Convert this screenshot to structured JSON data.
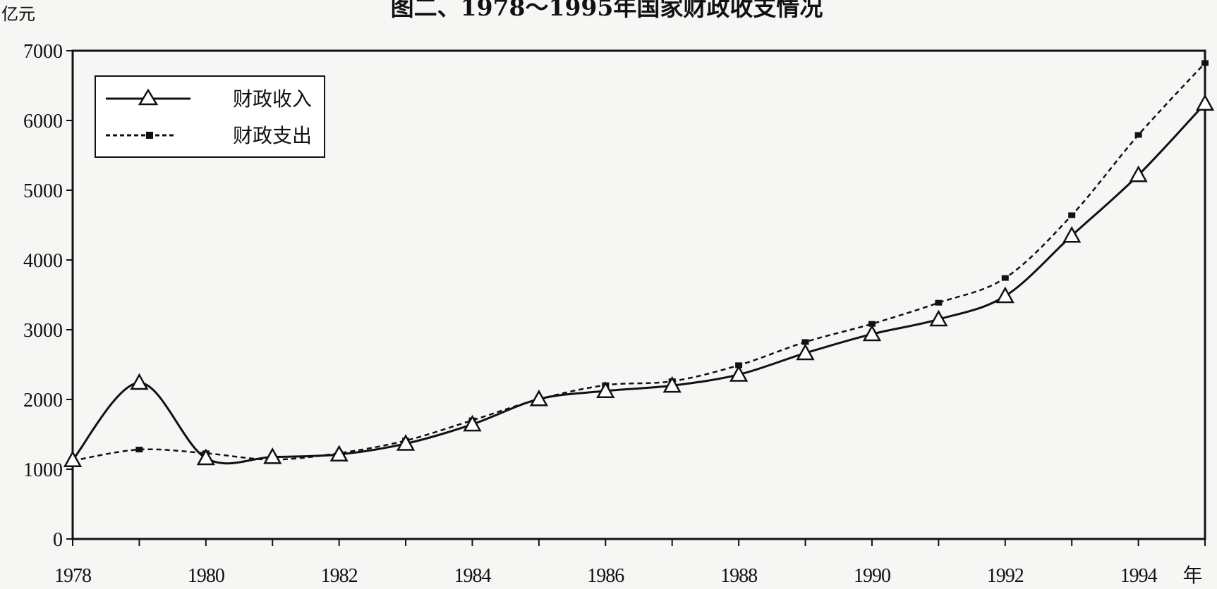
{
  "chart_data": {
    "type": "line",
    "title": "图二、1978～1995年国家财政收支情况",
    "ylabel": "亿元",
    "xlabel": "年",
    "xlim": [
      1978,
      1995
    ],
    "ylim": [
      0,
      7000
    ],
    "x_ticks": [
      "1978",
      "1980",
      "1982",
      "1984",
      "1986",
      "1988",
      "1990",
      "1992",
      "1994"
    ],
    "y_ticks": [
      "0",
      "1000",
      "2000",
      "3000",
      "4000",
      "5000",
      "6000",
      "7000"
    ],
    "grid": false,
    "legend_position": "top-left",
    "x": [
      1978,
      1979,
      1980,
      1981,
      1982,
      1983,
      1984,
      1985,
      1986,
      1987,
      1988,
      1989,
      1990,
      1991,
      1992,
      1993,
      1994,
      1995
    ],
    "series": [
      {
        "name": "财政收入",
        "marker": "triangle",
        "style": "solid",
        "values": [
          1132,
          2240,
          1160,
          1176,
          1212,
          1367,
          1643,
          2005,
          2122,
          2199,
          2357,
          2665,
          2937,
          3149,
          3483,
          4349,
          5218,
          6242
        ]
      },
      {
        "name": "财政支出",
        "marker": "square",
        "style": "dashed",
        "values": [
          1122,
          1282,
          1229,
          1138,
          1230,
          1410,
          1701,
          2004,
          2205,
          2262,
          2491,
          2824,
          3084,
          3387,
          3742,
          4642,
          5793,
          6824
        ]
      }
    ]
  },
  "colors": {
    "line": "#111111",
    "background": "#f6f6f4"
  }
}
